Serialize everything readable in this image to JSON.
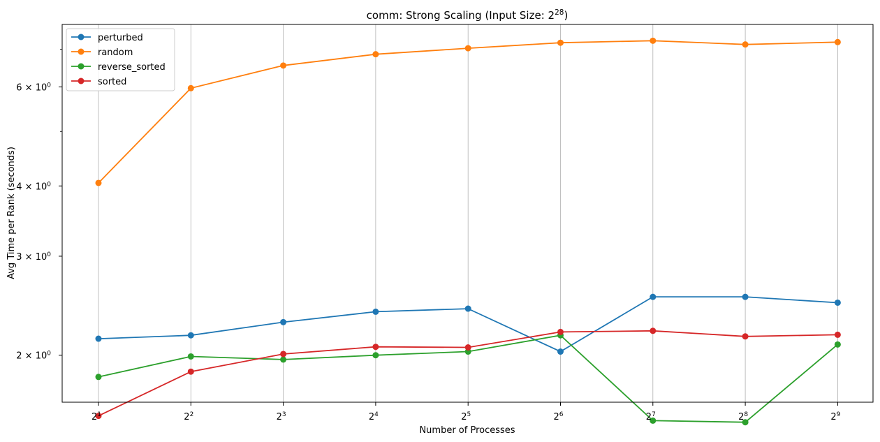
{
  "chart_data": {
    "type": "line",
    "title_base": "comm: Strong Scaling (Input Size: 2",
    "title_exp": "28",
    "title_close": ")",
    "xlabel": "Number of Processes",
    "ylabel": "Avg Time per Rank (seconds)",
    "x": [
      2,
      4,
      8,
      16,
      32,
      64,
      128,
      256,
      512
    ],
    "x_ticks": [
      {
        "base": "2",
        "exp": "1"
      },
      {
        "base": "2",
        "exp": "2"
      },
      {
        "base": "2",
        "exp": "3"
      },
      {
        "base": "2",
        "exp": "4"
      },
      {
        "base": "2",
        "exp": "5"
      },
      {
        "base": "2",
        "exp": "6"
      },
      {
        "base": "2",
        "exp": "7"
      },
      {
        "base": "2",
        "exp": "8"
      },
      {
        "base": "2",
        "exp": "9"
      }
    ],
    "y_scale": "log",
    "y_ticks": [
      {
        "value": 2,
        "base": "2 × 10",
        "exp": "0"
      },
      {
        "value": 3,
        "base": "3 × 10",
        "exp": "0"
      },
      {
        "value": 4,
        "base": "4 × 10",
        "exp": "0"
      },
      {
        "value": 6,
        "base": "6 × 10",
        "exp": "0"
      }
    ],
    "y_minor_ticks": [
      5,
      7
    ],
    "ylim": [
      1.65,
      7.75
    ],
    "x_grid": true,
    "legend_position": "upper-left",
    "series": [
      {
        "name": "perturbed",
        "color": "#1f77b4",
        "values": [
          2.14,
          2.17,
          2.29,
          2.39,
          2.42,
          2.03,
          2.54,
          2.54,
          2.48
        ]
      },
      {
        "name": "random",
        "color": "#ff7f0e",
        "values": [
          4.05,
          5.97,
          6.55,
          6.86,
          7.03,
          7.19,
          7.25,
          7.14,
          7.21
        ]
      },
      {
        "name": "reverse_sorted",
        "color": "#2ca02c",
        "values": [
          1.83,
          1.99,
          1.965,
          2.0,
          2.03,
          2.17,
          1.53,
          1.52,
          2.09
        ]
      },
      {
        "name": "sorted",
        "color": "#d62728",
        "values": [
          1.56,
          1.87,
          2.01,
          2.07,
          2.065,
          2.2,
          2.21,
          2.16,
          2.175
        ]
      }
    ]
  }
}
